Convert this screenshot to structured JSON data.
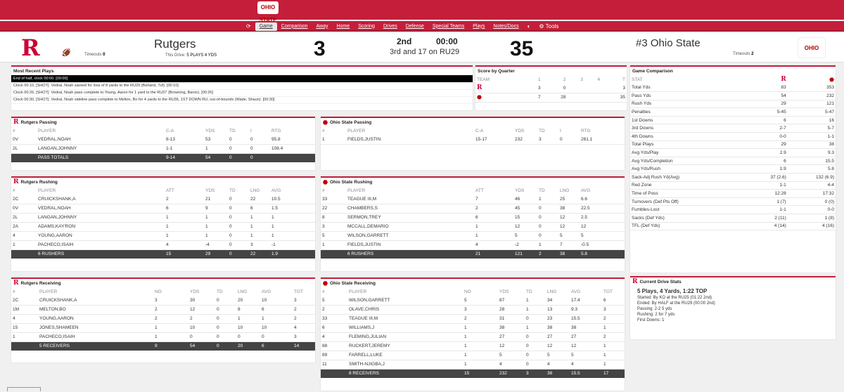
{
  "nav": {
    "refresh_icon": "refresh-icon",
    "items": [
      "Game",
      "Comparison",
      "Away",
      "Home",
      "Scoring",
      "Drives",
      "Defense",
      "Special Teams",
      "Plays",
      "Notes/Docs"
    ],
    "tools": "Tools",
    "logo": "OHIO STATE"
  },
  "score": {
    "away_name": "Rutgers",
    "away_score": "3",
    "away_timeouts_label": "Timeouts",
    "away_timeouts": "0",
    "drive_label": "This Drive:",
    "drive_value": "5 PLAYS 4 YDS",
    "period": "2nd",
    "clock": "00:00",
    "down": "3rd and 17 on RU29",
    "home_name": "#3 Ohio State",
    "home_score": "35",
    "home_timeouts_label": "Timeouts",
    "home_timeouts": "2",
    "away_logo": "R",
    "home_logo": "OHIO STATE"
  },
  "plays": {
    "title": "Most Recent Plays",
    "rows": [
      "End of half, clock 00:00. [00:00]",
      "Clock 00:10, [SHOT]. Vedral, Noah sacked for loss of 8 yards to the RU29 (Borland, Tuf). [00:10]",
      "Clock 00:26, [SHOT]. Vedral, Noah pass complete to Young, Aaron for 1 yard to the RU37 (Browning, Baron). [00:26]",
      "Clock 00:30, [SHOT]. Vedral, Noah sideline pass complete to Melton, Bo for 4 yards to the RU36, 1ST DOWN RU, out-of-bounds (Wade, Shaun). [00:30]"
    ]
  },
  "quarters": {
    "title": "Score by Quarter",
    "headers": [
      "TEAM",
      "1",
      "2",
      "3",
      "4",
      "T"
    ],
    "rows": [
      [
        "R",
        "3",
        "0",
        "",
        "",
        "3"
      ],
      [
        "O",
        "7",
        "28",
        "",
        "",
        "35"
      ]
    ]
  },
  "comparison": {
    "title": "Game Comparison",
    "stat_label": "STAT",
    "rows": [
      [
        "Total Yds",
        "83",
        "353"
      ],
      [
        "Pass Yds",
        "54",
        "232"
      ],
      [
        "Rush Yds",
        "29",
        "121"
      ],
      [
        "Penalties",
        "5-45",
        "5-47"
      ],
      [
        "1st Downs",
        "6",
        "16"
      ],
      [
        "3rd Downs",
        "2-7",
        "5-7"
      ],
      [
        "4th Downs",
        "0-0",
        "1-1"
      ],
      [
        "Total Plays",
        "29",
        "38"
      ],
      [
        "Avg Yds/Play",
        "2.9",
        "9.3"
      ],
      [
        "Avg Yds/Completion",
        "6",
        "15.5"
      ],
      [
        "Avg Yds/Rush",
        "1.9",
        "5.8"
      ],
      [
        "Sack-Adj Rush Yd(Avg)",
        "37 (2.6)",
        "132 (6.9)"
      ],
      [
        "Red Zone",
        "1-1",
        "4-4"
      ],
      [
        "Time of Poss",
        "12:28",
        "17:32"
      ],
      [
        "Turnovers (Def Pts Off)",
        "1 (7)",
        "0 (0)"
      ],
      [
        "Fumbles-Lost",
        "1-1",
        "0-0"
      ],
      [
        "Sacks (Def Yds)",
        "2 (11)",
        "1 (8)"
      ],
      [
        "TFL (Def Yds)",
        "4 (14)",
        "4 (16)"
      ]
    ]
  },
  "current_drive": {
    "title": "Current Drive Stats",
    "summary": "5 Plays, 4 Yards, 1:22 TOP",
    "lines": [
      "Started: By KO at the RU25 (01:22 2nd)",
      "Ended: By HALF at the RU29 (00:00 2nd)",
      "Passing: 2-2 5 yds",
      "Rushing: 2 for 7 yds",
      "First Downs: 1"
    ]
  },
  "ru_pass": {
    "title": "Rutgers Passing",
    "headers": [
      "#",
      "PLAYER",
      "C-A",
      "YDS",
      "TD",
      "I",
      "RTG"
    ],
    "rows": [
      [
        "0V",
        "VEDRAL,NOAH",
        "8-13",
        "53",
        "0",
        "0",
        "95.8"
      ],
      [
        "2L",
        "LANGAN,JOHNNY",
        "1-1",
        "1",
        "0",
        "0",
        "108.4"
      ]
    ],
    "total": [
      "",
      "PASS TOTALS",
      "9-14",
      "54",
      "0",
      "0",
      ""
    ]
  },
  "os_pass": {
    "title": "Ohio State Passing",
    "headers": [
      "#",
      "PLAYER",
      "C-A",
      "YDS",
      "TD",
      "I",
      "RTG"
    ],
    "rows": [
      [
        "1",
        "FIELDS,JUSTIN",
        "15-17",
        "232",
        "3",
        "0",
        "261.1"
      ]
    ]
  },
  "ru_rush": {
    "title": "Rutgers Rushing",
    "headers": [
      "#",
      "PLAYER",
      "ATT",
      "YDS",
      "TD",
      "LNG",
      "AVG"
    ],
    "rows": [
      [
        "2C",
        "CRUICKSHANK,A",
        "2",
        "21",
        "0",
        "22",
        "10.5"
      ],
      [
        "0V",
        "VEDRAL,NOAH",
        "6",
        "9",
        "0",
        "6",
        "1.5"
      ],
      [
        "2L",
        "LANGAN,JOHNNY",
        "1",
        "1",
        "0",
        "1",
        "1"
      ],
      [
        "2A",
        "ADAMS,KAY'RON",
        "1",
        "1",
        "0",
        "1",
        "1"
      ],
      [
        "4",
        "YOUNG,AARON",
        "1",
        "1",
        "0",
        "1",
        "1"
      ],
      [
        "1",
        "PACHECO,ISAIH",
        "4",
        "-4",
        "0",
        "3",
        "-1"
      ]
    ],
    "total": [
      "",
      "6 RUSHERS",
      "15",
      "29",
      "0",
      "22",
      "1.9"
    ]
  },
  "os_rush": {
    "title": "Ohio State Rushing",
    "headers": [
      "#",
      "PLAYER",
      "ATT",
      "YDS",
      "TD",
      "LNG",
      "AVG"
    ],
    "rows": [
      [
        "33",
        "TEAGUE III,M",
        "7",
        "46",
        "1",
        "25",
        "6.6"
      ],
      [
        "22",
        "CHAMBERS,S",
        "2",
        "45",
        "0",
        "38",
        "22.5"
      ],
      [
        "8",
        "SERMON,TREY",
        "6",
        "15",
        "0",
        "12",
        "2.5"
      ],
      [
        "3",
        "MCCALL,DEMARIO",
        "1",
        "12",
        "0",
        "12",
        "12"
      ],
      [
        "5",
        "WILSON,GARRETT",
        "1",
        "5",
        "0",
        "5",
        "5"
      ],
      [
        "1",
        "FIELDS,JUSTIN",
        "4",
        "-2",
        "1",
        "7",
        "-0.5"
      ]
    ],
    "total": [
      "",
      "6 RUSHERS",
      "21",
      "121",
      "2",
      "38",
      "5.8"
    ]
  },
  "ru_rec": {
    "title": "Rutgers Receiving",
    "headers": [
      "#",
      "PLAYER",
      "NO",
      "YDS",
      "TD",
      "LNG",
      "AVG",
      "TGT"
    ],
    "rows": [
      [
        "2C",
        "CRUICKSHANK,A",
        "3",
        "30",
        "0",
        "20",
        "10",
        "3"
      ],
      [
        "1M",
        "MELTON,BO",
        "2",
        "12",
        "0",
        "8",
        "6",
        "2"
      ],
      [
        "4",
        "YOUNG,AARON",
        "2",
        "2",
        "0",
        "1",
        "1",
        "2"
      ],
      [
        "15",
        "JONES,SHAMEEN",
        "1",
        "10",
        "0",
        "10",
        "10",
        "4"
      ],
      [
        "1",
        "PACHECO,ISAIH",
        "1",
        "0",
        "0",
        "0",
        "0",
        "3"
      ]
    ],
    "total": [
      "",
      "5 RECEIVERS",
      "9",
      "54",
      "0",
      "20",
      "6",
      "14"
    ]
  },
  "os_rec": {
    "title": "Ohio State Receiving",
    "headers": [
      "#",
      "PLAYER",
      "NO",
      "YDS",
      "TD",
      "LNG",
      "AVG",
      "TGT"
    ],
    "rows": [
      [
        "5",
        "WILSON,GARRETT",
        "5",
        "87",
        "1",
        "34",
        "17.4",
        "6"
      ],
      [
        "2",
        "OLAVE,CHRIS",
        "3",
        "28",
        "1",
        "13",
        "9.3",
        "3"
      ],
      [
        "33",
        "TEAGUE III,M",
        "2",
        "31",
        "0",
        "23",
        "15.5",
        "2"
      ],
      [
        "6",
        "WILLIAMS,J",
        "1",
        "38",
        "1",
        "38",
        "38",
        "1"
      ],
      [
        "4",
        "FLEMING,JULIAN",
        "1",
        "27",
        "0",
        "27",
        "27",
        "2"
      ],
      [
        "88",
        "RUCKERT,JEREMY",
        "1",
        "12",
        "0",
        "12",
        "12",
        "1"
      ],
      [
        "89",
        "FARRELL,LUKE",
        "1",
        "5",
        "0",
        "5",
        "5",
        "1"
      ],
      [
        "11",
        "SMITH-NJIGBA,J",
        "1",
        "4",
        "0",
        "4",
        "4",
        "1"
      ]
    ],
    "total": [
      "",
      "8 RECEIVERS",
      "15",
      "232",
      "3",
      "38",
      "15.5",
      "17"
    ]
  }
}
